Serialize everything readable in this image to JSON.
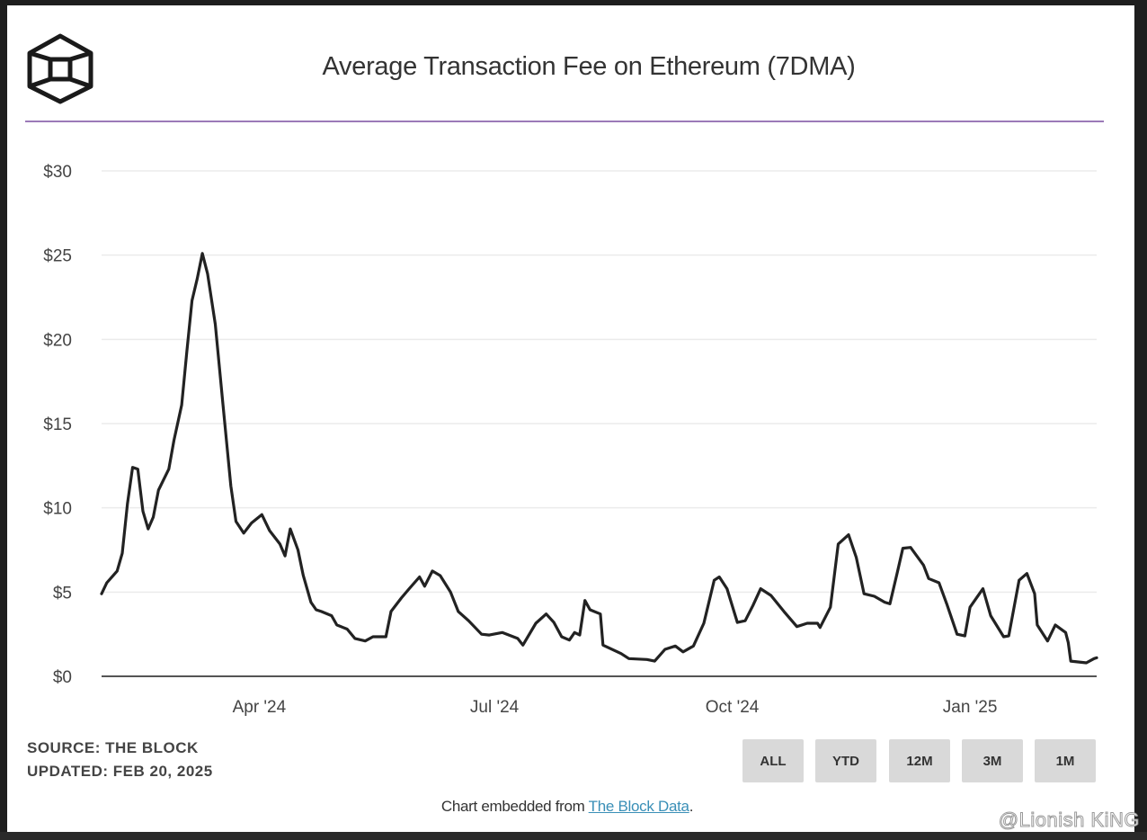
{
  "title": "Average Transaction Fee on Ethereum (7DMA)",
  "source": "SOURCE: THE BLOCK",
  "updated": "UPDATED: FEB 20, 2025",
  "range_buttons": [
    "ALL",
    "YTD",
    "12M",
    "3M",
    "1M"
  ],
  "embed": {
    "prefix": "Chart embedded from ",
    "link": "The Block Data",
    "suffix": "."
  },
  "watermark": "@Lionish KiNG",
  "colors": {
    "line": "#222222",
    "accent_rule": "#7b4fa0",
    "grid": "#ebebeb",
    "button": "#d9d9d9",
    "link": "#3a8fb7"
  },
  "logo_icon": "the-block-cube-logo",
  "chart_data": {
    "type": "line",
    "title": "Average Transaction Fee on Ethereum (7DMA)",
    "xlabel": "",
    "ylabel": "",
    "xlim": [
      "2024-01-31",
      "2025-02-19"
    ],
    "ylim": [
      0,
      30
    ],
    "y_ticks": [
      0,
      5,
      10,
      15,
      20,
      25,
      30
    ],
    "y_tick_labels": [
      "$0",
      "$5",
      "$10",
      "$15",
      "$20",
      "$25",
      "$30"
    ],
    "x_ticks": [
      "2024-04-01",
      "2024-07-01",
      "2024-10-01",
      "2025-01-01"
    ],
    "x_tick_labels": [
      "Apr '24",
      "Jul '24",
      "Oct '24",
      "Jan '25"
    ],
    "grid": true,
    "legend": "none",
    "x": [
      "2024-01-31",
      "2024-02-02",
      "2024-02-06",
      "2024-02-08",
      "2024-02-10",
      "2024-02-12",
      "2024-02-14",
      "2024-02-16",
      "2024-02-18",
      "2024-02-20",
      "2024-02-22",
      "2024-02-26",
      "2024-02-28",
      "2024-03-02",
      "2024-03-04",
      "2024-03-06",
      "2024-03-08",
      "2024-03-10",
      "2024-03-12",
      "2024-03-15",
      "2024-03-18",
      "2024-03-21",
      "2024-03-23",
      "2024-03-26",
      "2024-03-29",
      "2024-04-02",
      "2024-04-05",
      "2024-04-09",
      "2024-04-11",
      "2024-04-13",
      "2024-04-16",
      "2024-04-18",
      "2024-04-21",
      "2024-04-23",
      "2024-04-25",
      "2024-04-29",
      "2024-05-01",
      "2024-05-05",
      "2024-05-08",
      "2024-05-12",
      "2024-05-15",
      "2024-05-20",
      "2024-05-22",
      "2024-05-26",
      "2024-05-29",
      "2024-06-02",
      "2024-06-04",
      "2024-06-07",
      "2024-06-10",
      "2024-06-14",
      "2024-06-17",
      "2024-06-21",
      "2024-06-26",
      "2024-06-29",
      "2024-07-04",
      "2024-07-10",
      "2024-07-12",
      "2024-07-17",
      "2024-07-21",
      "2024-07-24",
      "2024-07-27",
      "2024-07-30",
      "2024-08-01",
      "2024-08-03",
      "2024-08-05",
      "2024-08-07",
      "2024-08-11",
      "2024-08-12",
      "2024-08-19",
      "2024-08-22",
      "2024-08-29",
      "2024-09-01",
      "2024-09-05",
      "2024-09-09",
      "2024-09-12",
      "2024-09-16",
      "2024-09-20",
      "2024-09-24",
      "2024-09-26",
      "2024-09-29",
      "2024-10-03",
      "2024-10-06",
      "2024-10-09",
      "2024-10-12",
      "2024-10-16",
      "2024-10-21",
      "2024-10-26",
      "2024-10-30",
      "2024-11-03",
      "2024-11-04",
      "2024-11-08",
      "2024-11-11",
      "2024-11-15",
      "2024-11-18",
      "2024-11-21",
      "2024-11-25",
      "2024-11-29",
      "2024-12-01",
      "2024-12-04",
      "2024-12-06",
      "2024-12-09",
      "2024-12-14",
      "2024-12-16",
      "2024-12-20",
      "2024-12-23",
      "2024-12-27",
      "2024-12-30",
      "2025-01-01",
      "2025-01-06",
      "2025-01-09",
      "2025-01-14",
      "2025-01-16",
      "2025-01-20",
      "2025-01-23",
      "2025-01-26",
      "2025-01-27",
      "2025-01-31",
      "2025-02-03",
      "2025-02-07",
      "2025-02-08",
      "2025-02-09",
      "2025-02-15",
      "2025-02-18",
      "2025-02-19"
    ],
    "y": [
      4.9,
      5.55,
      6.25,
      7.3,
      10.25,
      12.4,
      12.3,
      9.8,
      8.75,
      9.45,
      11.05,
      12.3,
      14,
      16.1,
      19.3,
      22.3,
      23.6,
      25.1,
      23.9,
      20.9,
      16.1,
      11.3,
      9.2,
      8.5,
      9.1,
      9.6,
      8.65,
      7.85,
      7.15,
      8.75,
      7.5,
      6,
      4.4,
      3.95,
      3.85,
      3.6,
      3.05,
      2.8,
      2.25,
      2.1,
      2.35,
      2.35,
      3.85,
      4.65,
      5.2,
      5.9,
      5.35,
      6.25,
      5.98,
      5.0,
      3.85,
      3.3,
      2.5,
      2.45,
      2.6,
      2.25,
      1.85,
      3.15,
      3.7,
      3.2,
      2.35,
      2.15,
      2.6,
      2.45,
      4.5,
      3.95,
      3.7,
      1.85,
      1.35,
      1.05,
      1.0,
      0.9,
      1.6,
      1.8,
      1.45,
      1.8,
      3.15,
      5.7,
      5.9,
      5.2,
      3.2,
      3.3,
      4.2,
      5.2,
      4.8,
      3.85,
      2.95,
      3.15,
      3.15,
      2.9,
      4.1,
      7.85,
      8.4,
      7.05,
      4.9,
      4.75,
      4.4,
      4.3,
      6.25,
      7.6,
      7.65,
      6.6,
      5.8,
      5.55,
      4.3,
      2.5,
      2.4,
      4.1,
      5.2,
      3.6,
      2.35,
      2.4,
      5.7,
      6.1,
      4.9,
      3.05,
      2.1,
      3.05,
      2.6,
      2.0,
      0.9,
      0.8,
      1.05,
      1.1
    ]
  }
}
